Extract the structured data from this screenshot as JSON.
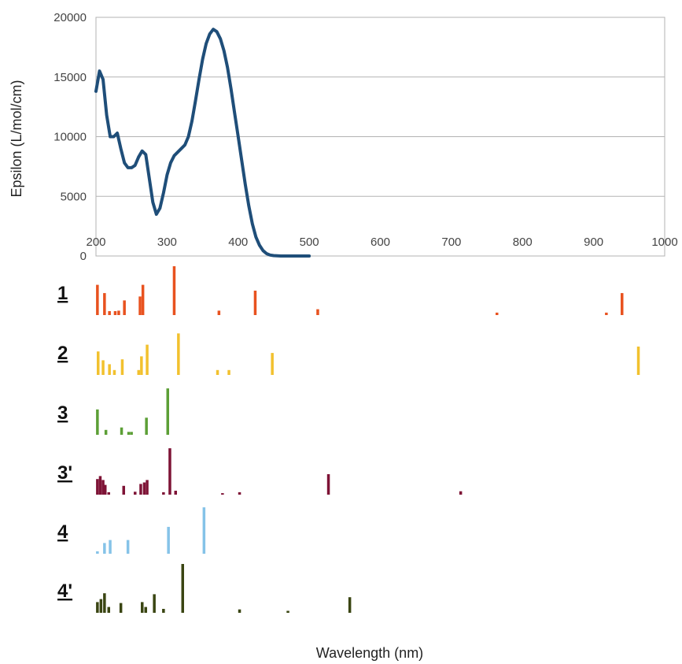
{
  "chart_data": [
    {
      "type": "line",
      "title": "",
      "ylabel": "Epsilon (L/mol/cm)",
      "xlabel": "",
      "xlim": [
        200,
        1000
      ],
      "ylim": [
        0,
        20000
      ],
      "xticks": [
        200,
        300,
        400,
        500,
        600,
        700,
        800,
        900,
        1000
      ],
      "yticks": [
        0,
        5000,
        10000,
        15000,
        20000
      ],
      "grid": "horizontal",
      "series": [
        {
          "color": "#1f4e79",
          "x": [
            200,
            205,
            210,
            215,
            220,
            225,
            230,
            235,
            240,
            245,
            250,
            255,
            260,
            265,
            270,
            275,
            280,
            285,
            290,
            295,
            300,
            305,
            310,
            315,
            320,
            325,
            330,
            335,
            340,
            345,
            350,
            355,
            360,
            365,
            370,
            375,
            380,
            385,
            390,
            395,
            400,
            405,
            410,
            415,
            420,
            425,
            430,
            435,
            440,
            445,
            450,
            455,
            460,
            470,
            480,
            490,
            500
          ],
          "y": [
            13800,
            15500,
            14800,
            11800,
            10000,
            10000,
            10300,
            9000,
            7800,
            7400,
            7400,
            7600,
            8300,
            8800,
            8500,
            6500,
            4500,
            3500,
            4000,
            5300,
            6800,
            7800,
            8400,
            8700,
            9000,
            9300,
            10000,
            11300,
            13000,
            14800,
            16500,
            17800,
            18600,
            19000,
            18800,
            18200,
            17200,
            15800,
            14000,
            12000,
            10000,
            8000,
            6000,
            4200,
            2700,
            1600,
            900,
            450,
            200,
            80,
            30,
            10,
            0,
            0,
            0,
            0,
            0
          ]
        }
      ]
    },
    {
      "type": "bar",
      "xlabel": "Wavelength (nm)",
      "xlim": [
        200,
        1000
      ],
      "rows": [
        {
          "label": "1",
          "color": "#e8521f",
          "x": [
            202,
            212,
            219,
            227,
            232,
            240,
            262,
            266,
            310,
            373,
            424,
            512,
            764,
            918,
            940
          ],
          "h": [
            0.62,
            0.45,
            0.08,
            0.08,
            0.09,
            0.3,
            0.38,
            0.62,
            1.0,
            0.09,
            0.5,
            0.12,
            0.05,
            0.05,
            0.45
          ]
        },
        {
          "label": "2",
          "color": "#f2c12e",
          "x": [
            203,
            210,
            219,
            226,
            237,
            260,
            264,
            272,
            316,
            371,
            387,
            448,
            963
          ],
          "h": [
            0.48,
            0.3,
            0.22,
            0.1,
            0.32,
            0.1,
            0.38,
            0.62,
            0.85,
            0.1,
            0.1,
            0.45,
            0.58
          ]
        },
        {
          "label": "3",
          "color": "#5c9f36",
          "x": [
            202,
            214,
            236,
            246,
            250,
            271,
            301
          ],
          "h": [
            0.52,
            0.1,
            0.15,
            0.06,
            0.06,
            0.35,
            0.95
          ]
        },
        {
          "label": "3'",
          "color": "#7e1336",
          "x": [
            202,
            206,
            210,
            213,
            218,
            239,
            255,
            263,
            268,
            272,
            295,
            304,
            312,
            378,
            402,
            527,
            713
          ],
          "h": [
            0.32,
            0.38,
            0.3,
            0.2,
            0.05,
            0.18,
            0.06,
            0.22,
            0.25,
            0.3,
            0.05,
            0.95,
            0.08,
            0.03,
            0.05,
            0.42,
            0.07
          ]
        },
        {
          "label": "4",
          "color": "#85c3e8",
          "x": [
            202,
            212,
            220,
            245,
            302,
            352
          ],
          "h": [
            0.05,
            0.22,
            0.28,
            0.28,
            0.55,
            0.95
          ]
        },
        {
          "label": "4'",
          "color": "#3a4512",
          "x": [
            202,
            207,
            212,
            218,
            235,
            265,
            270,
            282,
            295,
            322,
            402,
            470,
            557
          ],
          "h": [
            0.22,
            0.28,
            0.4,
            0.12,
            0.2,
            0.22,
            0.12,
            0.38,
            0.08,
            1.0,
            0.07,
            0.04,
            0.32
          ]
        }
      ]
    }
  ]
}
